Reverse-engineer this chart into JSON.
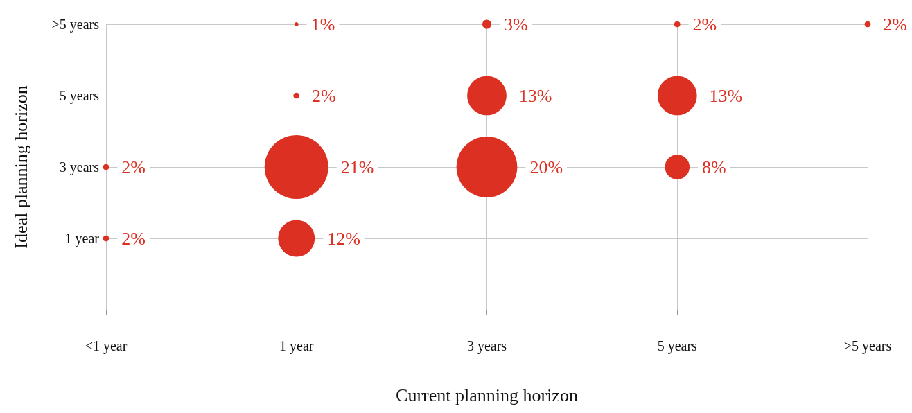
{
  "chart_data": {
    "type": "bubble",
    "xlabel": "Current planning horizon",
    "ylabel": "Ideal planning horizon",
    "grid": true,
    "categories": [
      "<1 year",
      "1 year",
      "3 years",
      "5 years",
      ">5 years"
    ],
    "ylim": [
      -1,
      7
    ],
    "yticks": [
      {
        "value": 1,
        "label": "1 year"
      },
      {
        "value": 3,
        "label": "3 years"
      },
      {
        "value": 5,
        "label": "5 years"
      },
      {
        "value": 7,
        "label": ">5 years"
      }
    ],
    "series": [
      {
        "color": "#dc3022",
        "x": [
          "<1 year",
          "<1 year",
          "1 year",
          "1 year",
          "1 year",
          "1 year",
          "3 years",
          "3 years",
          "3 years",
          "5 years",
          "5 years",
          "5 years",
          ">5 years"
        ],
        "values": [
          1,
          3,
          1,
          3,
          5,
          7,
          3,
          5,
          7,
          3,
          5,
          7,
          7
        ],
        "sizes": [
          0.009,
          0.009,
          0.33,
          1,
          0.009,
          0.004,
          0.91,
          0.38,
          0.02,
          0.15,
          0.38,
          0.009,
          0.009
        ]
      }
    ],
    "annotations": [
      {
        "text": "2%",
        "x": "<1 year",
        "y": 1
      },
      {
        "text": "2%",
        "x": "<1 year",
        "y": 3
      },
      {
        "text": "12%",
        "x": "1 year",
        "y": 1
      },
      {
        "text": "21%",
        "x": "1 year",
        "y": 3
      },
      {
        "text": "2%",
        "x": "1 year",
        "y": 5
      },
      {
        "text": "1%",
        "x": "1 year",
        "y": 7
      },
      {
        "text": "20%",
        "x": "3 years",
        "y": 3
      },
      {
        "text": "13%",
        "x": "3 years",
        "y": 5
      },
      {
        "text": "3%",
        "x": "3 years",
        "y": 7
      },
      {
        "text": "8%",
        "x": "5 years",
        "y": 3
      },
      {
        "text": "13%",
        "x": "5 years",
        "y": 5
      },
      {
        "text": "2%",
        "x": "5 years",
        "y": 7
      },
      {
        "text": "2%",
        "x": ">5 years",
        "y": 7
      }
    ]
  }
}
